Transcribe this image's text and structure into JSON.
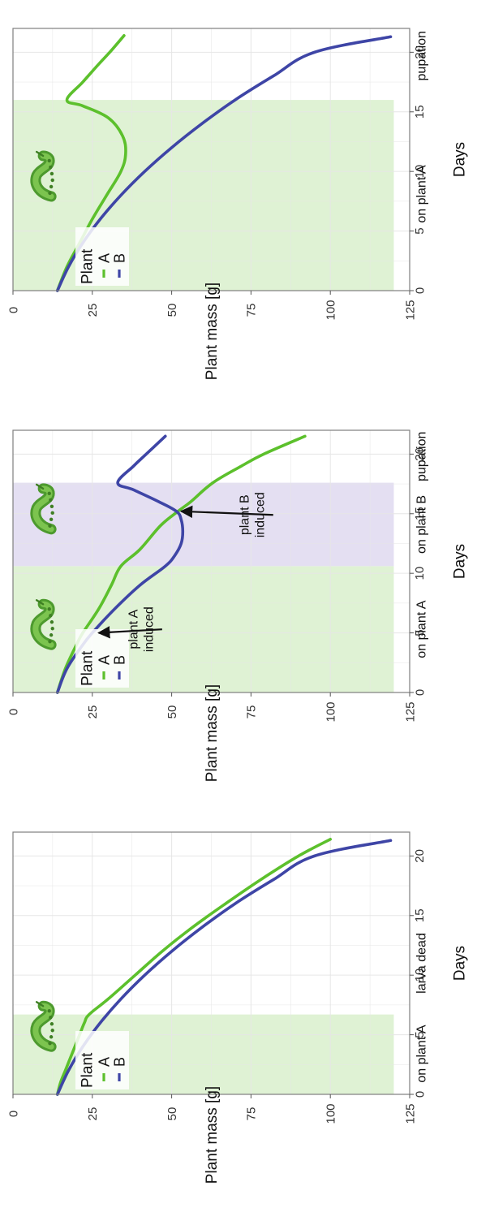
{
  "chart_data": [
    {
      "type": "line",
      "panel": "left",
      "xlabel": "Days",
      "ylabel": "Plant mass [g]",
      "xlim": [
        0,
        22
      ],
      "ylim": [
        0,
        125
      ],
      "xticks": [
        0,
        5,
        10,
        15,
        20
      ],
      "yticks": [
        0,
        25,
        50,
        75,
        100,
        125
      ],
      "grid": true,
      "legend": {
        "title": "Plant",
        "position": "top-left",
        "entries": [
          {
            "label": "A",
            "color": "#5cc02c"
          },
          {
            "label": "B",
            "color": "#3e45a6"
          }
        ]
      },
      "shaded_regions": [
        {
          "x0": 0,
          "x1": 6.7,
          "y0": 0,
          "y1": 120,
          "color": "#dff2d4"
        }
      ],
      "period_labels": [
        {
          "x": 3.4,
          "text": "on plant A"
        },
        {
          "x": 11,
          "text": "larva dead"
        }
      ],
      "larva_icons": [
        {
          "x": 5.5,
          "y": 10
        }
      ],
      "arrows": [],
      "series": [
        {
          "name": "A",
          "color": "#5cc02c",
          "x": [
            0,
            1,
            2,
            3,
            4,
            5,
            6,
            6.7,
            8,
            10,
            12,
            14,
            16,
            18,
            20,
            21.4
          ],
          "y": [
            14,
            15,
            16.5,
            18,
            19.5,
            21,
            22.5,
            24,
            30,
            38.5,
            47,
            56.5,
            67,
            78,
            90,
            100
          ]
        },
        {
          "name": "B",
          "color": "#3e45a6",
          "x": [
            0,
            2,
            4,
            6,
            8,
            10,
            12,
            14,
            16,
            18,
            20,
            21.3
          ],
          "y": [
            14,
            17.5,
            22,
            27.5,
            34,
            41.5,
            50,
            59.5,
            70,
            82,
            95,
            119
          ]
        }
      ]
    },
    {
      "type": "line",
      "panel": "middle",
      "xlabel": "Days",
      "ylabel": "Plant mass [g]",
      "xlim": [
        0,
        22
      ],
      "ylim": [
        0,
        125
      ],
      "xticks": [
        0,
        5,
        10,
        15,
        20
      ],
      "yticks": [
        0,
        25,
        50,
        75,
        100,
        125
      ],
      "grid": true,
      "legend": {
        "title": "Plant",
        "position": "top-left",
        "entries": [
          {
            "label": "A",
            "color": "#5cc02c"
          },
          {
            "label": "B",
            "color": "#3e45a6"
          }
        ]
      },
      "shaded_regions": [
        {
          "x0": 0,
          "x1": 10.6,
          "y0": 0,
          "y1": 120,
          "color": "#dff2d4"
        },
        {
          "x0": 10.6,
          "x1": 17.6,
          "y0": 0,
          "y1": 120,
          "color": "#e4dff2"
        }
      ],
      "period_labels": [
        {
          "x": 5.3,
          "text": "on plant A"
        },
        {
          "x": 14.1,
          "text": "on plant B"
        },
        {
          "x": 19.8,
          "text": "pupation"
        }
      ],
      "larva_icons": [
        {
          "x": 5.5,
          "y": 10
        },
        {
          "x": 15.2,
          "y": 10
        }
      ],
      "arrows": [
        {
          "text_lines": [
            "plant A",
            "induced"
          ],
          "from": [
            5.3,
            47
          ],
          "to": [
            5.0,
            27
          ]
        },
        {
          "text_lines": [
            "plant B",
            "induced"
          ],
          "from": [
            14.9,
            82
          ],
          "to": [
            15.2,
            53
          ]
        }
      ],
      "series": [
        {
          "name": "A",
          "color": "#5cc02c",
          "x": [
            0,
            2,
            4,
            5,
            7,
            9,
            10.6,
            12,
            14,
            15.2,
            16,
            17.6,
            19,
            20,
            21.5
          ],
          "y": [
            14,
            16.5,
            20,
            22,
            27,
            31,
            34,
            40,
            46.5,
            52,
            56,
            63,
            72,
            79,
            92
          ]
        },
        {
          "name": "B",
          "color": "#3e45a6",
          "x": [
            0,
            2,
            4,
            5,
            7,
            9,
            10.6,
            11.5,
            12.5,
            13.5,
            14.5,
            15.2,
            16,
            17,
            17.6,
            19,
            20,
            21.5
          ],
          "y": [
            14,
            17,
            22,
            25,
            32,
            40,
            48,
            51,
            53,
            53.5,
            53,
            51.5,
            46,
            38,
            33,
            38,
            42,
            48
          ]
        }
      ]
    },
    {
      "type": "line",
      "panel": "right",
      "xlabel": "Days",
      "ylabel": "Plant mass [g]",
      "xlim": [
        0,
        22
      ],
      "ylim": [
        0,
        125
      ],
      "xticks": [
        0,
        5,
        10,
        15,
        20
      ],
      "yticks": [
        0,
        25,
        50,
        75,
        100,
        125
      ],
      "grid": true,
      "legend": {
        "title": "Plant",
        "position": "top-left",
        "entries": [
          {
            "label": "A",
            "color": "#5cc02c"
          },
          {
            "label": "B",
            "color": "#3e45a6"
          }
        ]
      },
      "shaded_regions": [
        {
          "x0": 0,
          "x1": 16,
          "y0": 0,
          "y1": 120,
          "color": "#dff2d4"
        }
      ],
      "period_labels": [
        {
          "x": 8.1,
          "text": "on plant A"
        },
        {
          "x": 19.7,
          "text": "pupation"
        }
      ],
      "larva_icons": [
        {
          "x": 9.4,
          "y": 10
        }
      ],
      "arrows": [],
      "series": [
        {
          "name": "A",
          "color": "#5cc02c",
          "x": [
            0,
            2,
            4,
            6,
            8,
            10,
            11.5,
            13,
            14.5,
            15.5,
            16,
            17.5,
            19,
            20,
            21.4
          ],
          "y": [
            14,
            17,
            21,
            25,
            29.5,
            34,
            35.5,
            34.5,
            30,
            22,
            17,
            22,
            27,
            30.5,
            35
          ]
        },
        {
          "name": "B",
          "color": "#3e45a6",
          "x": [
            0,
            2,
            4,
            6,
            8,
            10,
            12,
            14,
            16,
            18,
            20,
            21.3
          ],
          "y": [
            14,
            17.5,
            22,
            27.5,
            34,
            41.5,
            50,
            59.5,
            70,
            82,
            95,
            119
          ]
        }
      ]
    }
  ]
}
